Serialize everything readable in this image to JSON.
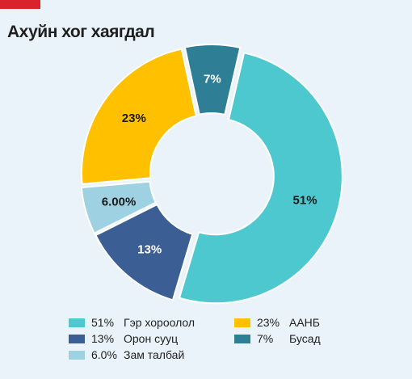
{
  "title": "Ахуйн хог хаягдал",
  "chart_data": {
    "type": "pie",
    "title": "Ахуйн хог хаягдал",
    "donut": true,
    "slices": [
      {
        "name": "Гэр хороолол",
        "value": 51,
        "label": "51%",
        "legend_value": "51%",
        "color": "#4ec8cf",
        "label_color": "#1a1a1a"
      },
      {
        "name": "Орон сууц",
        "value": 13,
        "label": "13%",
        "legend_value": "13%",
        "color": "#3b5f94",
        "label_color": "#ffffff"
      },
      {
        "name": "Зам талбай",
        "value": 6.0,
        "label": "6.00%",
        "legend_value": "6.0%",
        "color": "#9ed2e3",
        "label_color": "#1a1a1a"
      },
      {
        "name": "ААНБ",
        "value": 23,
        "label": "23%",
        "legend_value": "23%",
        "color": "#ffc000",
        "label_color": "#1a1a1a"
      },
      {
        "name": "Бусад",
        "value": 7,
        "label": "7%",
        "legend_value": "7%",
        "color": "#2e7f95",
        "label_color": "#ffffff"
      }
    ],
    "legend_position": "bottom"
  }
}
